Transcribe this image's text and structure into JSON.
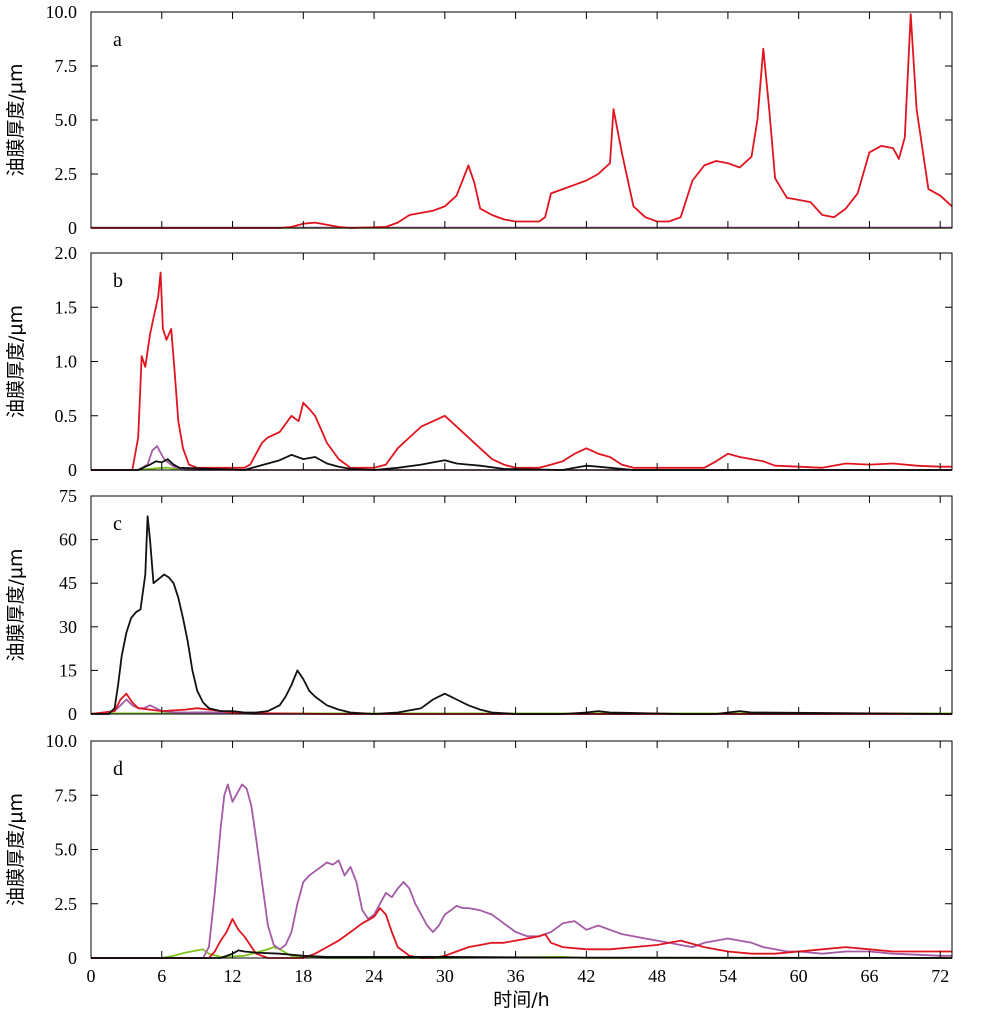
{
  "x_axis": {
    "label": "时间/h",
    "range": [
      0,
      73
    ],
    "ticks": [
      0,
      6,
      12,
      18,
      24,
      30,
      36,
      42,
      48,
      54,
      60,
      66,
      72
    ]
  },
  "series_colors": {
    "red": "#e0141e",
    "black": "#111111",
    "purple": "#a55aa8",
    "green": "#7fc31c"
  },
  "chart_data": [
    {
      "type": "line",
      "tag": "a",
      "ylabel": "油膜厚度/μm",
      "ylim": [
        0,
        10.0
      ],
      "yticks": [
        "0",
        "2.5",
        "5.0",
        "7.5",
        "10.0"
      ],
      "series": [
        {
          "color": "red",
          "x": [
            0,
            16,
            17,
            18,
            19,
            20,
            21,
            22,
            25,
            26,
            27,
            28,
            29,
            30,
            31,
            32,
            32.5,
            33,
            34,
            35,
            36,
            37,
            38,
            38.5,
            39,
            40,
            41,
            42,
            43,
            44,
            44.3,
            45,
            46,
            47,
            48,
            49,
            50,
            51,
            52,
            53,
            54,
            55,
            56,
            56.5,
            57,
            57.5,
            58,
            59,
            60,
            61,
            62,
            63,
            64,
            65,
            66,
            67,
            68,
            68.5,
            69,
            69.5,
            70,
            71,
            72,
            73
          ],
          "y": [
            0,
            0,
            0.05,
            0.2,
            0.25,
            0.15,
            0.05,
            0,
            0.05,
            0.25,
            0.6,
            0.7,
            0.8,
            1.0,
            1.5,
            2.9,
            2.1,
            0.9,
            0.6,
            0.4,
            0.3,
            0.3,
            0.3,
            0.5,
            1.6,
            1.8,
            2.0,
            2.2,
            2.5,
            3.0,
            5.5,
            3.5,
            1.0,
            0.5,
            0.3,
            0.3,
            0.5,
            2.2,
            2.9,
            3.1,
            3.0,
            2.8,
            3.3,
            5.0,
            8.3,
            5.5,
            2.3,
            1.4,
            1.3,
            1.2,
            0.6,
            0.5,
            0.9,
            1.6,
            3.5,
            3.8,
            3.7,
            3.2,
            4.2,
            9.9,
            5.5,
            1.8,
            1.5,
            1.0
          ]
        },
        {
          "color": "purple",
          "x": [
            0,
            73
          ],
          "y": [
            0.02,
            0.02
          ]
        },
        {
          "color": "green",
          "x": [
            0,
            73
          ],
          "y": [
            0.01,
            0.01
          ]
        }
      ]
    },
    {
      "type": "line",
      "tag": "b",
      "ylabel": "油膜厚度/μm",
      "ylim": [
        0,
        2.0
      ],
      "yticks": [
        "0",
        "0.5",
        "1.0",
        "1.5",
        "2.0"
      ],
      "series": [
        {
          "color": "red",
          "x": [
            0,
            3.5,
            4,
            4.3,
            4.6,
            5,
            5.3,
            5.7,
            5.9,
            6.1,
            6.4,
            6.8,
            7.1,
            7.4,
            7.8,
            8.3,
            9,
            11,
            13,
            13.5,
            14,
            14.5,
            15,
            16,
            17,
            17.6,
            18,
            18.6,
            19,
            19.6,
            20,
            21,
            22,
            24,
            25,
            26,
            27,
            28,
            29,
            30,
            31,
            32,
            33,
            34,
            35,
            36,
            38,
            39,
            40,
            41,
            42,
            43,
            44,
            45,
            46,
            48,
            50,
            52,
            53,
            54,
            55,
            56,
            57,
            58,
            60,
            62,
            64,
            66,
            68,
            70,
            72,
            73
          ],
          "y": [
            0,
            0,
            0.3,
            1.05,
            0.95,
            1.25,
            1.4,
            1.6,
            1.82,
            1.3,
            1.2,
            1.3,
            0.9,
            0.45,
            0.2,
            0.05,
            0.02,
            0.02,
            0.02,
            0.05,
            0.15,
            0.25,
            0.3,
            0.35,
            0.5,
            0.45,
            0.62,
            0.55,
            0.5,
            0.35,
            0.25,
            0.1,
            0.02,
            0.02,
            0.05,
            0.2,
            0.3,
            0.4,
            0.45,
            0.5,
            0.4,
            0.3,
            0.2,
            0.1,
            0.05,
            0.02,
            0.02,
            0.05,
            0.08,
            0.15,
            0.2,
            0.15,
            0.12,
            0.05,
            0.02,
            0.02,
            0.02,
            0.02,
            0.08,
            0.15,
            0.12,
            0.1,
            0.08,
            0.04,
            0.03,
            0.02,
            0.06,
            0.05,
            0.06,
            0.04,
            0.03,
            0.03
          ]
        },
        {
          "color": "purple",
          "x": [
            0,
            4,
            4.8,
            5.2,
            5.6,
            6.2,
            7,
            8,
            73
          ],
          "y": [
            0,
            0,
            0.05,
            0.18,
            0.22,
            0.1,
            0.03,
            0,
            0
          ]
        },
        {
          "color": "black",
          "x": [
            0,
            4,
            5,
            5.5,
            6,
            6.5,
            7,
            7.5,
            13,
            14,
            16,
            17,
            18,
            19,
            20,
            21,
            22,
            24,
            26,
            28,
            29,
            30,
            31,
            32,
            33,
            35,
            40,
            41,
            42,
            43,
            44,
            46,
            73
          ],
          "y": [
            0,
            0,
            0.05,
            0.08,
            0.07,
            0.1,
            0.05,
            0.02,
            0,
            0.03,
            0.09,
            0.14,
            0.1,
            0.12,
            0.06,
            0.03,
            0.01,
            0,
            0.02,
            0.05,
            0.07,
            0.09,
            0.06,
            0.05,
            0.04,
            0.01,
            0,
            0.02,
            0.04,
            0.03,
            0.02,
            0,
            0
          ]
        },
        {
          "color": "green",
          "x": [
            0,
            4,
            5,
            6,
            6.5,
            7,
            8,
            73
          ],
          "y": [
            0,
            0,
            0.01,
            0.02,
            0.02,
            0.01,
            0,
            0
          ]
        }
      ]
    },
    {
      "type": "line",
      "tag": "c",
      "ylabel": "油膜厚度/μm",
      "ylim": [
        0,
        75
      ],
      "yticks": [
        "0",
        "15",
        "30",
        "45",
        "60",
        "75"
      ],
      "series": [
        {
          "color": "black",
          "x": [
            0,
            1.5,
            2,
            2.3,
            2.6,
            3,
            3.4,
            3.8,
            4.2,
            4.6,
            4.8,
            5,
            5.3,
            5.6,
            5.9,
            6.2,
            6.6,
            7,
            7.4,
            7.8,
            8.2,
            8.6,
            9,
            9.5,
            10,
            11,
            12,
            13,
            14,
            15,
            16,
            16.5,
            17,
            17.5,
            18,
            18.5,
            19,
            20,
            21,
            22,
            24,
            26,
            28,
            29,
            29.5,
            30,
            30.5,
            31,
            32,
            33,
            34,
            36,
            40,
            42,
            43,
            44,
            50,
            53,
            54,
            55,
            56,
            73
          ],
          "y": [
            0,
            0,
            2,
            10,
            20,
            28,
            33,
            35,
            36,
            48,
            68,
            60,
            45,
            46,
            47,
            48,
            47,
            45,
            40,
            33,
            25,
            15,
            8,
            4,
            2,
            1,
            1,
            0.5,
            0.5,
            1,
            3,
            6,
            10,
            15,
            12,
            8,
            6,
            3,
            1.5,
            0.5,
            0,
            0.5,
            2,
            5,
            6,
            7,
            6,
            5,
            3,
            1.5,
            0.5,
            0,
            0,
            0.5,
            1,
            0.5,
            0,
            0,
            0.5,
            1,
            0.5,
            0
          ]
        },
        {
          "color": "red",
          "x": [
            0,
            2,
            2.5,
            3,
            3.5,
            4,
            5,
            6,
            8,
            9,
            10,
            11,
            12,
            14,
            20,
            73
          ],
          "y": [
            0,
            1,
            5,
            7,
            4,
            2,
            1.5,
            1,
            1.5,
            2,
            1.5,
            1,
            0.5,
            0.3,
            0,
            0
          ]
        },
        {
          "color": "purple",
          "x": [
            0,
            2,
            2.5,
            3,
            3.5,
            4,
            4.5,
            5,
            5.5,
            6,
            7,
            8,
            10,
            12,
            14,
            73
          ],
          "y": [
            0,
            1,
            3,
            5,
            3,
            2,
            2,
            3,
            2,
            1,
            0.6,
            0.5,
            0.6,
            0.3,
            0,
            0
          ]
        },
        {
          "color": "green",
          "x": [
            0,
            73
          ],
          "y": [
            0.2,
            0.2
          ]
        }
      ]
    },
    {
      "type": "line",
      "tag": "d",
      "ylabel": "油膜厚度/μm",
      "ylim": [
        0,
        10.0
      ],
      "yticks": [
        "0",
        "2.5",
        "5.0",
        "7.5",
        "10.0"
      ],
      "series": [
        {
          "color": "purple",
          "x": [
            0,
            9.5,
            10,
            10.5,
            11,
            11.3,
            11.6,
            12,
            12.4,
            12.8,
            13.2,
            13.6,
            14,
            14.5,
            15,
            15.5,
            16,
            16.5,
            17,
            17.5,
            18,
            18.5,
            19,
            19.5,
            20,
            20.5,
            21,
            21.5,
            22,
            22.5,
            23,
            23.5,
            24,
            24.5,
            25,
            25.5,
            26,
            26.5,
            27,
            27.5,
            28,
            28.5,
            29,
            29.5,
            30,
            30.5,
            31,
            31.5,
            32,
            33,
            34,
            35,
            36,
            37,
            38,
            39,
            40,
            41,
            42,
            43,
            44,
            45,
            46,
            47,
            48,
            49,
            50,
            51,
            52,
            53,
            54,
            55,
            56,
            57,
            58,
            59,
            60,
            62,
            64,
            66,
            68,
            70,
            72,
            73
          ],
          "y": [
            0,
            0,
            0.5,
            3,
            6,
            7.5,
            8,
            7.2,
            7.6,
            8,
            7.8,
            7,
            5.5,
            3.5,
            1.5,
            0.6,
            0.4,
            0.6,
            1.2,
            2.5,
            3.5,
            3.8,
            4,
            4.2,
            4.4,
            4.3,
            4.5,
            3.8,
            4.2,
            3.5,
            2.2,
            1.8,
            2,
            2.5,
            3,
            2.8,
            3.2,
            3.5,
            3.2,
            2.5,
            2,
            1.5,
            1.2,
            1.5,
            2,
            2.2,
            2.4,
            2.3,
            2.3,
            2.2,
            2,
            1.6,
            1.2,
            1,
            1,
            1.2,
            1.6,
            1.7,
            1.3,
            1.5,
            1.3,
            1.1,
            1,
            0.9,
            0.8,
            0.7,
            0.6,
            0.5,
            0.7,
            0.8,
            0.9,
            0.8,
            0.7,
            0.5,
            0.4,
            0.3,
            0.3,
            0.2,
            0.3,
            0.3,
            0.2,
            0.15,
            0.1,
            0.1
          ]
        },
        {
          "color": "red",
          "x": [
            0,
            10,
            10.5,
            11,
            11.5,
            12,
            12.5,
            13,
            13.5,
            14,
            15,
            18,
            19,
            20,
            21,
            22,
            23,
            24,
            24.5,
            25,
            25.5,
            26,
            27,
            28,
            29,
            30,
            31,
            32,
            33,
            34,
            35,
            36,
            37,
            38,
            38.5,
            39,
            40,
            42,
            44,
            46,
            48,
            50,
            52,
            54,
            56,
            58,
            60,
            62,
            64,
            66,
            68,
            70,
            72,
            73
          ],
          "y": [
            0,
            0,
            0.3,
            0.8,
            1.2,
            1.8,
            1.3,
            1,
            0.6,
            0.2,
            0,
            0,
            0.2,
            0.5,
            0.8,
            1.2,
            1.6,
            1.9,
            2.3,
            2,
            1.2,
            0.5,
            0.1,
            0,
            0,
            0.1,
            0.3,
            0.5,
            0.6,
            0.7,
            0.7,
            0.8,
            0.9,
            1,
            1.1,
            0.7,
            0.5,
            0.4,
            0.4,
            0.5,
            0.6,
            0.8,
            0.5,
            0.3,
            0.2,
            0.2,
            0.3,
            0.4,
            0.5,
            0.4,
            0.3,
            0.3,
            0.3,
            0.3
          ]
        },
        {
          "color": "green",
          "x": [
            0,
            6,
            7,
            8,
            9,
            9.5,
            10,
            11,
            13,
            14,
            15,
            15.5,
            16,
            16.5,
            17,
            18,
            20,
            30,
            40,
            42,
            73
          ],
          "y": [
            0,
            0,
            0.1,
            0.25,
            0.35,
            0.4,
            0.2,
            0.05,
            0.1,
            0.25,
            0.4,
            0.5,
            0.4,
            0.25,
            0.1,
            0.05,
            0,
            0,
            0.05,
            0,
            0
          ]
        },
        {
          "color": "black",
          "x": [
            0,
            11,
            12,
            12.5,
            13,
            14,
            16,
            18,
            20,
            24,
            30,
            40,
            73
          ],
          "y": [
            0,
            0,
            0.2,
            0.35,
            0.3,
            0.25,
            0.2,
            0.1,
            0.05,
            0.05,
            0.05,
            0.02,
            0
          ]
        }
      ]
    }
  ]
}
